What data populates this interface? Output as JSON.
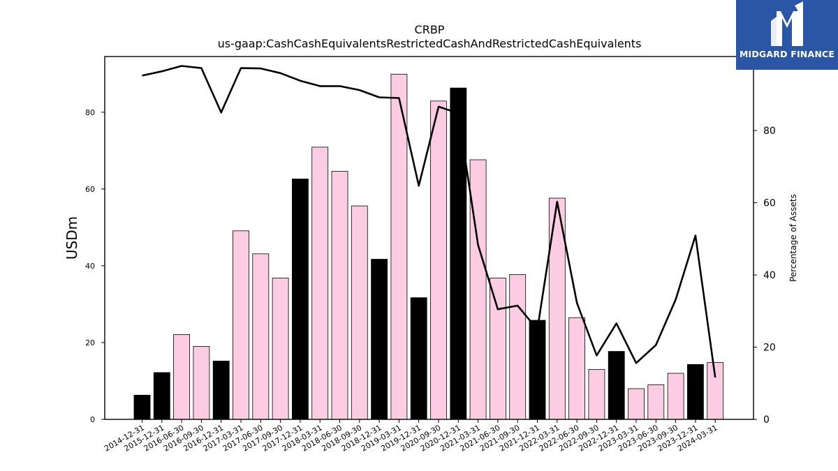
{
  "brand": {
    "name": "MIDGARD FINANCE",
    "bg_color": "#2a56a5",
    "icon": "midgard-m-logo-icon"
  },
  "chart_data": {
    "type": "bar",
    "title": "CRBP",
    "subtitle": "us-gaap:CashCashEquivalentsRestrictedCashAndRestrictedCashEquivalents",
    "ylabel": "USDm",
    "ylabel_right": "Percentage of Assets",
    "ylim": [
      0,
      94.5
    ],
    "ylim_right": [
      0,
      100.5
    ],
    "yticks": [
      0,
      20,
      40,
      60,
      80
    ],
    "yticks_right": [
      0,
      20,
      40,
      60,
      80
    ],
    "grid": false,
    "categories": [
      "2014-12-31",
      "2015-12-31",
      "2016-06-30",
      "2016-09-30",
      "2016-12-31",
      "2017-03-31",
      "2017-06-30",
      "2017-09-30",
      "2017-12-31",
      "2018-03-31",
      "2018-06-30",
      "2018-09-30",
      "2018-12-31",
      "2019-03-31",
      "2019-12-31",
      "2020-09-30",
      "2020-12-31",
      "2021-03-31",
      "2021-06-30",
      "2021-09-30",
      "2021-12-31",
      "2022-03-31",
      "2022-06-30",
      "2022-09-30",
      "2022-12-31",
      "2023-03-31",
      "2023-06-30",
      "2023-09-30",
      "2023-12-31",
      "2024-03-31"
    ],
    "series": [
      {
        "kind": "bar",
        "axis": "left",
        "values": [
          6.3,
          12.2,
          22.1,
          19.0,
          15.2,
          49.1,
          43.1,
          36.8,
          62.6,
          70.9,
          64.6,
          55.6,
          41.7,
          89.9,
          31.7,
          82.9,
          86.3,
          67.6,
          36.8,
          37.7,
          25.8,
          57.6,
          26.5,
          13.0,
          17.7,
          8.0,
          9.0,
          12.0,
          14.3,
          14.8
        ],
        "year_end_color": "#000000",
        "quarter_color": "#fccce3"
      },
      {
        "kind": "line",
        "axis": "right",
        "color": "#000000",
        "values": [
          95.2,
          96.4,
          97.9,
          97.3,
          85.0,
          97.3,
          97.2,
          95.9,
          93.8,
          92.3,
          92.3,
          91.2,
          89.2,
          89.0,
          64.7,
          86.6,
          84.8,
          48.3,
          30.5,
          31.5,
          24.9,
          60.3,
          32.3,
          17.7,
          26.6,
          15.6,
          20.6,
          33.2,
          50.9,
          11.6
        ]
      }
    ]
  }
}
